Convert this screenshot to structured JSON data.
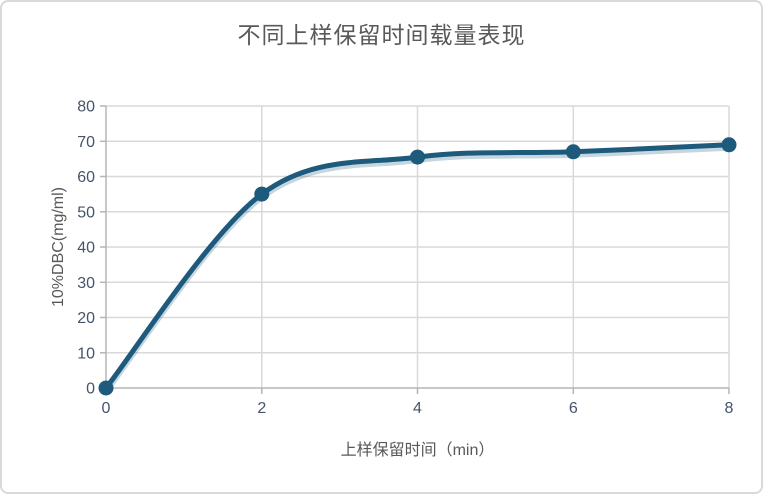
{
  "chart_data": {
    "type": "line",
    "title": "不同上样保留时间载量表现",
    "xlabel": "上样保留时间（min）",
    "ylabel": "10%DBC(mg/ml)",
    "x": [
      0,
      2,
      4,
      6,
      8
    ],
    "series": [
      {
        "name": "10%DBC",
        "values": [
          0,
          55,
          65.5,
          67,
          69
        ]
      }
    ],
    "xlim": [
      0,
      8
    ],
    "ylim": [
      0,
      80
    ],
    "xticks": [
      0,
      2,
      4,
      6,
      8
    ],
    "yticks": [
      0,
      10,
      20,
      30,
      40,
      50,
      60,
      70,
      80
    ],
    "grid": true,
    "legend_position": "none",
    "smooth_line": true,
    "colors": {
      "line": "#1d5a7c",
      "marker": "#1d5a7c",
      "gridline": "#d9d9d9",
      "axis": "#b5b5b5",
      "tick_label": "#44546a",
      "axis_title": "#595959",
      "chart_title": "#595959"
    }
  }
}
